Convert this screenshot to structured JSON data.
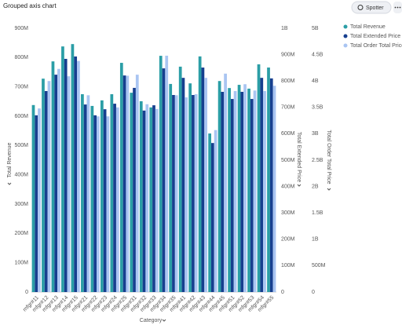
{
  "chart_data": {
    "type": "bar",
    "title": "Grouped axis chart",
    "button": "Spotter",
    "xlabel": "Category",
    "ylabel": "Total Revenue",
    "y2label": "Total Extended Price",
    "y3label": "Total Order Total Price",
    "categories": [
      "mfgr#11",
      "mfgr#12",
      "mfgr#13",
      "mfgr#14",
      "mfgr#15",
      "mfgr#21",
      "mfgr#22",
      "mfgr#23",
      "mfgr#24",
      "mfgr#25",
      "mfgr#31",
      "mfgr#32",
      "mfgr#33",
      "mfgr#34",
      "mfgr#35",
      "mfgr#41",
      "mfgr#42",
      "mfgr#43",
      "mfgr#44",
      "mfgr#45",
      "mfgr#51",
      "mfgr#52",
      "mfgr#53",
      "mfgr#54",
      "mfgr#55"
    ],
    "series": [
      {
        "name": "Total Revenue",
        "color": "#2b9ea6",
        "axis": "y",
        "values": [
          638000000,
          728000000,
          787000000,
          838000000,
          846000000,
          675000000,
          635000000,
          654000000,
          675000000,
          782000000,
          680000000,
          651000000,
          630000000,
          806000000,
          710000000,
          769000000,
          712000000,
          804000000,
          541000000,
          720000000,
          696000000,
          707000000,
          694000000,
          777000000,
          766000000
        ]
      },
      {
        "name": "Total Extended Price",
        "color": "#173f8f",
        "axis": "y2",
        "values": [
          670000000,
          762000000,
          824000000,
          884000000,
          893000000,
          711000000,
          670000000,
          693000000,
          714000000,
          821000000,
          774000000,
          688000000,
          708000000,
          848000000,
          747000000,
          812000000,
          747000000,
          851000000,
          565000000,
          759000000,
          732000000,
          759000000,
          732000000,
          812000000,
          810000000
        ]
      },
      {
        "name": "Total Order Total Price",
        "color": "#a9c5f2",
        "axis": "y3",
        "values": [
          3480000000,
          4000000000,
          4230000000,
          4090000000,
          4380000000,
          3730000000,
          3330000000,
          3330000000,
          3500000000,
          4100000000,
          4120000000,
          3560000000,
          3470000000,
          4480000000,
          3730000000,
          3690000000,
          3750000000,
          4060000000,
          3070000000,
          4140000000,
          3810000000,
          3940000000,
          3820000000,
          3810000000,
          3910000000
        ]
      }
    ],
    "ylim": [
      0,
      900000000
    ],
    "yticks": [
      {
        "value": 0,
        "label": "0"
      },
      {
        "value": 100000000,
        "label": "100M"
      },
      {
        "value": 200000000,
        "label": "200M"
      },
      {
        "value": 300000000,
        "label": "300M"
      },
      {
        "value": 400000000,
        "label": "400M"
      },
      {
        "value": 500000000,
        "label": "500M"
      },
      {
        "value": 600000000,
        "label": "600M"
      },
      {
        "value": 700000000,
        "label": "700M"
      },
      {
        "value": 800000000,
        "label": "800M"
      },
      {
        "value": 900000000,
        "label": "900M"
      }
    ],
    "y2lim": [
      0,
      1000000000
    ],
    "y2ticks": [
      {
        "value": 0,
        "label": "0"
      },
      {
        "value": 100000000,
        "label": "100M"
      },
      {
        "value": 200000000,
        "label": "200M"
      },
      {
        "value": 300000000,
        "label": "300M"
      },
      {
        "value": 400000000,
        "label": "400M"
      },
      {
        "value": 500000000,
        "label": "500M"
      },
      {
        "value": 600000000,
        "label": "600M"
      },
      {
        "value": 700000000,
        "label": "700M"
      },
      {
        "value": 800000000,
        "label": "800M"
      },
      {
        "value": 900000000,
        "label": "900M"
      },
      {
        "value": 1000000000,
        "label": "1B"
      }
    ],
    "y3lim": [
      0,
      5000000000
    ],
    "y3ticks": [
      {
        "value": 0,
        "label": "0"
      },
      {
        "value": 500000000,
        "label": "500M"
      },
      {
        "value": 1000000000,
        "label": "1B"
      },
      {
        "value": 1500000000,
        "label": "1.5B"
      },
      {
        "value": 2000000000,
        "label": "2B"
      },
      {
        "value": 2500000000,
        "label": "2.5B"
      },
      {
        "value": 3000000000,
        "label": "3B"
      },
      {
        "value": 3500000000,
        "label": "3.5B"
      },
      {
        "value": 4000000000,
        "label": "4B"
      },
      {
        "value": 4500000000,
        "label": "4.5B"
      },
      {
        "value": 5000000000,
        "label": "5B"
      }
    ],
    "legend": "top-right"
  }
}
